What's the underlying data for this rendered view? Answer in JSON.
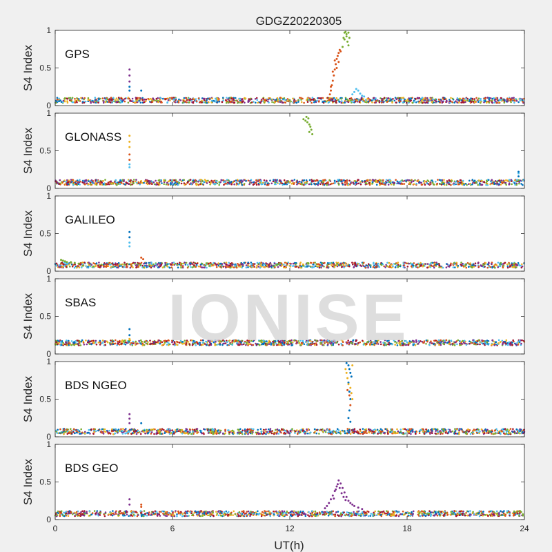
{
  "figure": {
    "title": "GDGZ20220305",
    "watermark": "IONISE",
    "xlabel": "UT(h)"
  },
  "colors": [
    "#0072BD",
    "#D95319",
    "#EDB120",
    "#7E2F8E",
    "#77AC30",
    "#4DBEEE",
    "#A2142F"
  ],
  "chart_data": [
    {
      "type": "scatter",
      "system": "GPS",
      "ylabel": "S4 Index",
      "xlim": [
        0,
        24
      ],
      "ylim": [
        0,
        1
      ],
      "xticks": [
        0,
        6,
        12,
        18,
        24
      ],
      "yticks": [
        0,
        0.5,
        1
      ],
      "baseline": 0.07,
      "series": [
        {
          "color_index": 1,
          "points": [
            [
              14.05,
              0.15
            ],
            [
              14.1,
              0.2
            ],
            [
              14.15,
              0.27
            ],
            [
              14.2,
              0.33
            ],
            [
              14.25,
              0.4
            ],
            [
              14.3,
              0.48
            ],
            [
              14.35,
              0.55
            ],
            [
              14.4,
              0.62
            ],
            [
              14.45,
              0.66
            ],
            [
              14.5,
              0.7
            ],
            [
              14.55,
              0.74
            ],
            [
              14.6,
              0.72
            ],
            [
              14.1,
              0.25
            ],
            [
              14.2,
              0.45
            ],
            [
              14.3,
              0.6
            ],
            [
              14.4,
              0.5
            ],
            [
              14.5,
              0.58
            ]
          ]
        },
        {
          "color_index": 4,
          "points": [
            [
              14.7,
              0.78
            ],
            [
              14.75,
              0.9
            ],
            [
              14.8,
              0.97
            ],
            [
              14.85,
              0.98
            ],
            [
              14.9,
              0.95
            ],
            [
              14.95,
              0.85
            ],
            [
              15.0,
              0.8
            ],
            [
              14.8,
              0.88
            ],
            [
              14.9,
              0.92
            ],
            [
              15.0,
              0.97
            ],
            [
              15.05,
              0.9
            ]
          ]
        },
        {
          "color_index": 5,
          "points": [
            [
              15.2,
              0.15
            ],
            [
              15.3,
              0.18
            ],
            [
              15.4,
              0.22
            ],
            [
              15.5,
              0.2
            ],
            [
              15.6,
              0.16
            ],
            [
              15.7,
              0.13
            ],
            [
              15.8,
              0.12
            ]
          ]
        },
        {
          "color_index": 3,
          "points": [
            [
              3.8,
              0.48
            ],
            [
              3.8,
              0.4
            ],
            [
              3.8,
              0.32
            ]
          ]
        },
        {
          "color_index": 0,
          "points": [
            [
              3.8,
              0.25
            ],
            [
              3.8,
              0.2
            ],
            [
              4.4,
              0.2
            ]
          ]
        }
      ]
    },
    {
      "type": "scatter",
      "system": "GLONASS",
      "ylabel": "S4 Index",
      "xlim": [
        0,
        24
      ],
      "ylim": [
        0,
        1
      ],
      "xticks": [
        0,
        6,
        12,
        18,
        24
      ],
      "yticks": [
        0,
        0.5,
        1
      ],
      "baseline": 0.08,
      "series": [
        {
          "color_index": 4,
          "points": [
            [
              12.7,
              0.92
            ],
            [
              12.8,
              0.9
            ],
            [
              12.9,
              0.88
            ],
            [
              13.0,
              0.85
            ],
            [
              13.05,
              0.82
            ],
            [
              13.1,
              0.78
            ],
            [
              13.15,
              0.72
            ],
            [
              12.85,
              0.95
            ],
            [
              12.95,
              0.93
            ],
            [
              13.0,
              0.75
            ]
          ]
        },
        {
          "color_index": 2,
          "points": [
            [
              3.8,
              0.7
            ],
            [
              3.8,
              0.62
            ],
            [
              3.8,
              0.55
            ]
          ]
        },
        {
          "color_index": 1,
          "points": [
            [
              3.8,
              0.45
            ],
            [
              3.8,
              0.38
            ]
          ]
        },
        {
          "color_index": 5,
          "points": [
            [
              3.8,
              0.32
            ],
            [
              3.8,
              0.28
            ],
            [
              23.7,
              0.2
            ]
          ]
        },
        {
          "color_index": 0,
          "points": [
            [
              23.7,
              0.22
            ],
            [
              23.7,
              0.16
            ]
          ]
        }
      ]
    },
    {
      "type": "scatter",
      "system": "GALILEO",
      "ylabel": "S4 Index",
      "xlim": [
        0,
        24
      ],
      "ylim": [
        0,
        1
      ],
      "xticks": [
        0,
        6,
        12,
        18,
        24
      ],
      "yticks": [
        0,
        0.5,
        1
      ],
      "baseline": 0.08,
      "series": [
        {
          "color_index": 0,
          "points": [
            [
              3.8,
              0.52
            ],
            [
              3.8,
              0.45
            ]
          ]
        },
        {
          "color_index": 5,
          "points": [
            [
              3.8,
              0.38
            ],
            [
              3.8,
              0.33
            ]
          ]
        },
        {
          "color_index": 4,
          "points": [
            [
              0.3,
              0.15
            ],
            [
              0.4,
              0.14
            ],
            [
              0.5,
              0.13
            ],
            [
              0.6,
              0.12
            ],
            [
              0.8,
              0.12
            ],
            [
              1.0,
              0.11
            ],
            [
              1.2,
              0.1
            ]
          ]
        },
        {
          "color_index": 1,
          "points": [
            [
              4.4,
              0.18
            ],
            [
              4.5,
              0.16
            ]
          ]
        }
      ]
    },
    {
      "type": "scatter",
      "system": "SBAS",
      "ylabel": "S4 Index",
      "xlim": [
        0,
        24
      ],
      "ylim": [
        0,
        1
      ],
      "xticks": [
        0,
        6,
        12,
        18,
        24
      ],
      "yticks": [
        0,
        0.5,
        1
      ],
      "baseline": 0.15,
      "series": [
        {
          "color_index": 0,
          "points": [
            [
              3.8,
              0.33
            ],
            [
              3.8,
              0.25
            ]
          ]
        },
        {
          "color_index": 2,
          "points": [
            [
              3.8,
              0.2
            ]
          ]
        }
      ]
    },
    {
      "type": "scatter",
      "system": "BDS NGEO",
      "ylabel": "S4 Index",
      "xlim": [
        0,
        24
      ],
      "ylim": [
        0,
        1
      ],
      "xticks": [
        0,
        6,
        12,
        18,
        24
      ],
      "yticks": [
        0,
        0.5,
        1
      ],
      "baseline": 0.07,
      "series": [
        {
          "color_index": 0,
          "points": [
            [
              14.9,
              0.98
            ],
            [
              15.0,
              0.95
            ],
            [
              15.05,
              0.9
            ],
            [
              15.1,
              0.85
            ],
            [
              15.15,
              0.8
            ],
            [
              15.0,
              0.72
            ],
            [
              15.05,
              0.6
            ],
            [
              15.1,
              0.5
            ],
            [
              15.05,
              0.35
            ],
            [
              15.0,
              0.25
            ],
            [
              15.1,
              0.2
            ]
          ]
        },
        {
          "color_index": 2,
          "points": [
            [
              14.9,
              0.85
            ],
            [
              14.95,
              0.78
            ],
            [
              15.0,
              0.7
            ],
            [
              15.1,
              0.65
            ],
            [
              15.15,
              0.58
            ],
            [
              15.2,
              0.5
            ],
            [
              14.85,
              0.9
            ],
            [
              15.2,
              0.95
            ]
          ]
        },
        {
          "color_index": 1,
          "points": [
            [
              14.95,
              0.62
            ],
            [
              15.05,
              0.55
            ],
            [
              15.1,
              0.42
            ]
          ]
        },
        {
          "color_index": 3,
          "points": [
            [
              3.8,
              0.3
            ],
            [
              3.8,
              0.24
            ],
            [
              3.8,
              0.18
            ]
          ]
        },
        {
          "color_index": 0,
          "points": [
            [
              4.4,
              0.18
            ]
          ]
        }
      ]
    },
    {
      "type": "scatter",
      "system": "BDS GEO",
      "ylabel": "S4 Index",
      "xlim": [
        0,
        24
      ],
      "ylim": [
        0,
        1
      ],
      "xticks": [
        0,
        6,
        12,
        18,
        24
      ],
      "yticks": [
        0,
        0.5,
        1
      ],
      "baseline": 0.08,
      "series": [
        {
          "color_index": 3,
          "points": [
            [
              13.8,
              0.15
            ],
            [
              13.9,
              0.18
            ],
            [
              14.0,
              0.22
            ],
            [
              14.1,
              0.27
            ],
            [
              14.2,
              0.32
            ],
            [
              14.3,
              0.38
            ],
            [
              14.4,
              0.44
            ],
            [
              14.5,
              0.52
            ],
            [
              14.6,
              0.48
            ],
            [
              14.7,
              0.42
            ],
            [
              14.8,
              0.36
            ],
            [
              14.9,
              0.3
            ],
            [
              15.0,
              0.25
            ],
            [
              15.1,
              0.22
            ],
            [
              15.2,
              0.2
            ],
            [
              15.3,
              0.18
            ],
            [
              15.5,
              0.16
            ],
            [
              15.7,
              0.14
            ],
            [
              14.35,
              0.4
            ],
            [
              14.45,
              0.47
            ],
            [
              14.55,
              0.42
            ],
            [
              14.65,
              0.35
            ],
            [
              14.75,
              0.3
            ],
            [
              14.25,
              0.28
            ],
            [
              14.85,
              0.26
            ]
          ]
        },
        {
          "color_index": 3,
          "points": [
            [
              3.8,
              0.27
            ],
            [
              3.8,
              0.2
            ]
          ]
        },
        {
          "color_index": 1,
          "points": [
            [
              4.4,
              0.2
            ],
            [
              4.4,
              0.17
            ]
          ]
        }
      ]
    }
  ]
}
